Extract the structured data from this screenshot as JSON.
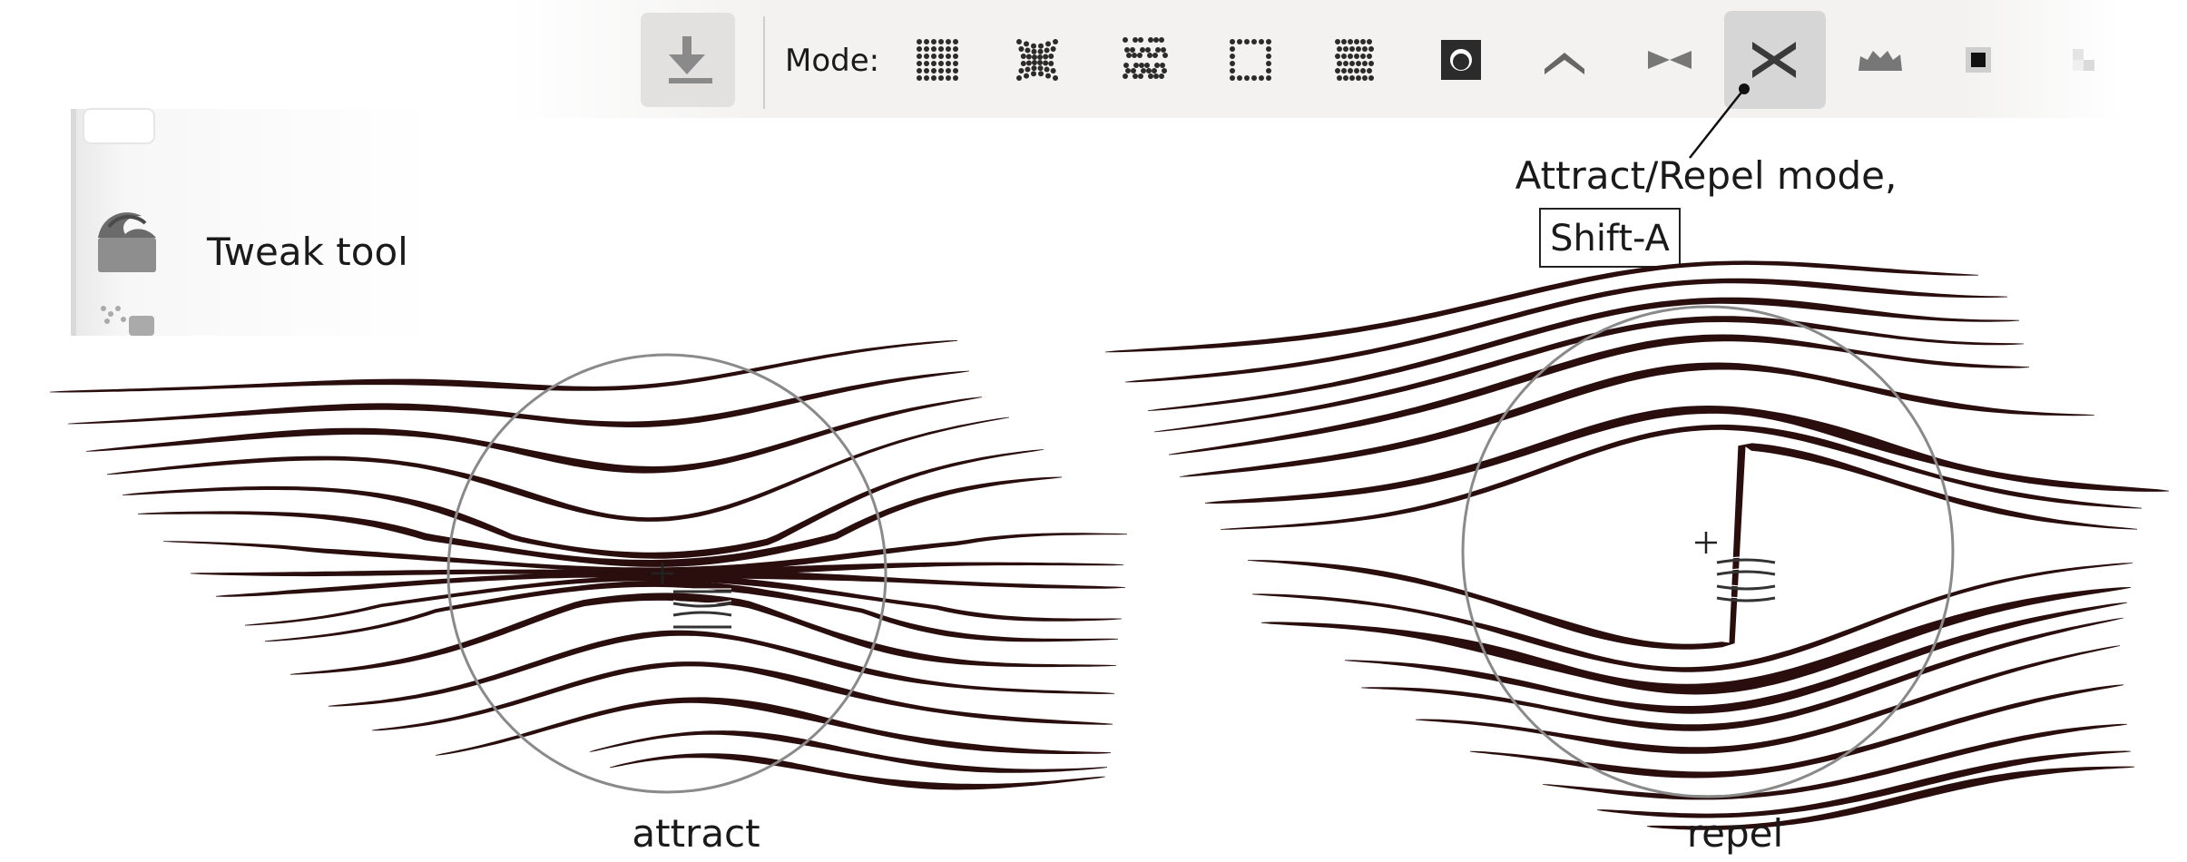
{
  "toolbar": {
    "mode_label": "Mode:",
    "download_icon": "download-icon",
    "modes": [
      {
        "name": "move-mode-icon",
        "active": false
      },
      {
        "name": "move-in-out-mode-icon",
        "active": false
      },
      {
        "name": "move-jitter-mode-icon",
        "active": false
      },
      {
        "name": "scale-mode-icon",
        "active": false
      },
      {
        "name": "rotate-mode-icon",
        "active": false
      },
      {
        "name": "duplicate-mode-icon",
        "active": false
      },
      {
        "name": "push-mode-icon",
        "active": false
      },
      {
        "name": "shrink-grow-mode-icon",
        "active": false
      },
      {
        "name": "attract-repel-mode-icon",
        "active": true
      },
      {
        "name": "roughen-mode-icon",
        "active": false
      },
      {
        "name": "paint-color-mode-icon",
        "active": false
      },
      {
        "name": "jitter-color-mode-icon",
        "active": false
      }
    ]
  },
  "toolbox": {
    "tool_icon": "tweak-wave-icon",
    "tool_label": "Tweak tool"
  },
  "callout": {
    "text": "Attract/Repel mode,",
    "shortcut": "Shift-A"
  },
  "panels": {
    "attract_label": "attract",
    "repel_label": "repel"
  },
  "colors": {
    "stroke": "#2a0e0e",
    "toolbar_bg": "#f3f2f1",
    "active_bg": "#d6d6d6",
    "circle": "#8a8a8a"
  }
}
